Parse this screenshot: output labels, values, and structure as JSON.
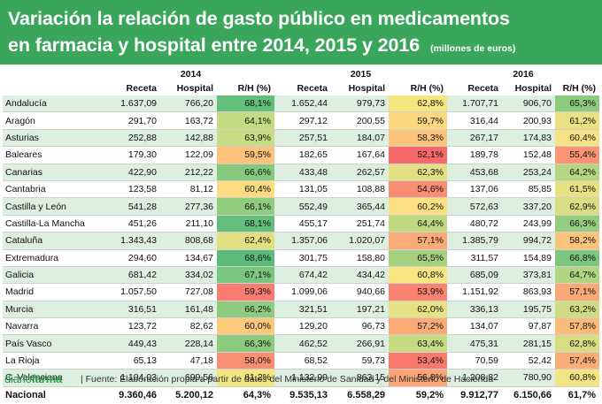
{
  "header": {
    "title_line1": "Variación la relación de gasto público en medicamentos",
    "title_line2": "en farmacia y hospital entre 2014, 2015 y 2016",
    "units": "(millones de euros)"
  },
  "years": [
    "2014",
    "2015",
    "2016"
  ],
  "columns": [
    "Receta",
    "Hospital",
    "R/H (%)"
  ],
  "colors": {
    "header_bg": "#3aa65c",
    "row_alt_bg": "#dcefe0",
    "brand": "#2d9a4f"
  },
  "rows": [
    {
      "name": "Andalucía",
      "cells": [
        "1.637,09",
        "766,20",
        "68,1%",
        "1.652,44",
        "979,73",
        "62,8%",
        "1.707,71",
        "906,70",
        "65,3%"
      ],
      "colors": [
        "#63be7b",
        "#f4e57f",
        "#8ccb7e"
      ]
    },
    {
      "name": "Aragón",
      "cells": [
        "291,70",
        "163,72",
        "64,1%",
        "297,12",
        "200,55",
        "59,7%",
        "316,44",
        "200,93",
        "61,2%"
      ],
      "colors": [
        "#c5db81",
        "#fbd77f",
        "#eae282"
      ]
    },
    {
      "name": "Asturias",
      "cells": [
        "252,88",
        "142,88",
        "63,9%",
        "257,51",
        "184,07",
        "58,3%",
        "267,17",
        "174,83",
        "60,4%"
      ],
      "colors": [
        "#c8dc81",
        "#fcc47b",
        "#f6e283"
      ]
    },
    {
      "name": "Baleares",
      "cells": [
        "179,30",
        "122,09",
        "59,5%",
        "182,65",
        "167,64",
        "52,1%",
        "189,78",
        "152,48",
        "55,4%"
      ],
      "colors": [
        "#fcc27b",
        "#f8696b",
        "#fa9473"
      ]
    },
    {
      "name": "Canarias",
      "cells": [
        "422,90",
        "212,22",
        "66,6%",
        "433,48",
        "262,57",
        "62,3%",
        "453,68",
        "253,24",
        "64,2%"
      ],
      "colors": [
        "#86c97e",
        "#e2e083",
        "#b4d680"
      ]
    },
    {
      "name": "Cantabria",
      "cells": [
        "123,58",
        "81,12",
        "60,4%",
        "131,05",
        "108,88",
        "54,6%",
        "137,06",
        "85,85",
        "61,5%"
      ],
      "colors": [
        "#fddb81",
        "#fa8c72",
        "#e7e182"
      ]
    },
    {
      "name": "Castilla y León",
      "cells": [
        "541,28",
        "277,36",
        "66,1%",
        "552,49",
        "365,44",
        "60,2%",
        "572,63",
        "337,20",
        "62,9%"
      ],
      "colors": [
        "#90cc7e",
        "#fde082",
        "#d6dd82"
      ]
    },
    {
      "name": "Castilla-La Mancha",
      "cells": [
        "451,26",
        "211,10",
        "68,1%",
        "455,17",
        "251,74",
        "64,4%",
        "480,72",
        "243,99",
        "66,3%"
      ],
      "colors": [
        "#63be7b",
        "#c0d980",
        "#94cd7e"
      ]
    },
    {
      "name": "Cataluña",
      "cells": [
        "1.343,43",
        "808,68",
        "62,4%",
        "1.357,06",
        "1.020,07",
        "57,1%",
        "1.385,79",
        "994,72",
        "58,2%"
      ],
      "colors": [
        "#e0df82",
        "#fbab77",
        "#fcc37b"
      ]
    },
    {
      "name": "Extremadura",
      "cells": [
        "294,60",
        "134,67",
        "68,6%",
        "301,75",
        "158,80",
        "65,5%",
        "311,57",
        "154,89",
        "66,8%"
      ],
      "colors": [
        "#5bbc7b",
        "#a6d27f",
        "#7cc67d"
      ]
    },
    {
      "name": "Galicia",
      "cells": [
        "681,42",
        "334,02",
        "67,1%",
        "674,42",
        "434,42",
        "60,8%",
        "685,09",
        "373,81",
        "64,7%"
      ],
      "colors": [
        "#7bc67d",
        "#f8e683",
        "#b0d580"
      ]
    },
    {
      "name": "Madrid",
      "cells": [
        "1.057,50",
        "727,08",
        "59,3%",
        "1.099,06",
        "940,66",
        "53,9%",
        "1.151,92",
        "863,93",
        "57,1%"
      ],
      "colors": [
        "#f87d70",
        "#f98271",
        "#fba877"
      ]
    },
    {
      "name": "Murcia",
      "cells": [
        "316,51",
        "161,48",
        "66,2%",
        "321,51",
        "197,21",
        "62,0%",
        "336,13",
        "195,75",
        "63,2%"
      ],
      "colors": [
        "#8fcb7e",
        "#e6e182",
        "#d0dc81"
      ]
    },
    {
      "name": "Navarra",
      "cells": [
        "123,72",
        "82,62",
        "60,0%",
        "129,20",
        "96,73",
        "57,2%",
        "134,07",
        "97,87",
        "57,8%"
      ],
      "colors": [
        "#fcc87c",
        "#fbab77",
        "#fbba79"
      ]
    },
    {
      "name": "País Vasco",
      "cells": [
        "449,43",
        "228,14",
        "66,3%",
        "462,52",
        "266,91",
        "63,4%",
        "475,31",
        "281,15",
        "62,8%"
      ],
      "colors": [
        "#8ccb7e",
        "#c6db81",
        "#d6dd82"
      ]
    },
    {
      "name": "La Rioja",
      "cells": [
        "65,13",
        "47,18",
        "58,0%",
        "68,52",
        "59,73",
        "53,4%",
        "70,59",
        "52,42",
        "57,4%"
      ],
      "colors": [
        "#fa8e72",
        "#f9786e",
        "#fbad77"
      ]
    },
    {
      "name": "C. Valenciana",
      "cells": [
        "1.104,03",
        "699,56",
        "61,2%",
        "1.132,99",
        "863,15",
        "56,8%",
        "1.208,82",
        "780,90",
        "60,8%"
      ],
      "colors": [
        "#f2e683",
        "#fba476",
        "#f2e383"
      ]
    }
  ],
  "total": {
    "name": "Nacional",
    "cells": [
      "9.360,46",
      "5.200,12",
      "64,3%",
      "9.535,13",
      "6.558,29",
      "59,2%",
      "9.912,77",
      "6.150,66",
      "61,7%"
    ]
  },
  "footer": {
    "brand_light": "diario",
    "brand_bold": "farma",
    "source": "| Fuente:  Elaboración propia a partir de datos del Ministerio de Sanidad y del Ministerio de Hacienda"
  }
}
